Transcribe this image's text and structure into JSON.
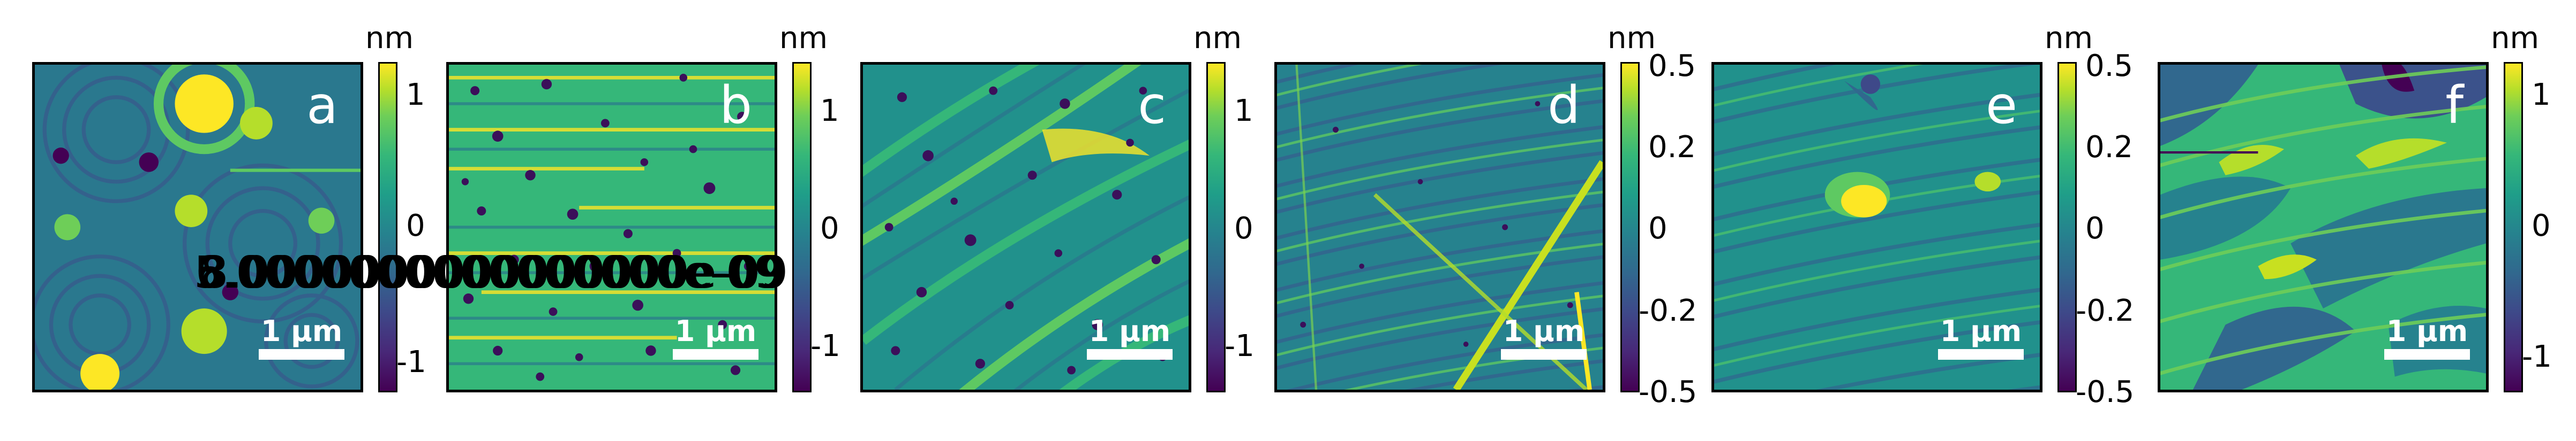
{
  "figure": {
    "panels": [
      {
        "id": "a",
        "label": "a",
        "scalebar": "1 μm",
        "unit": "nm",
        "ticks": [
          "1",
          "0",
          "-1"
        ],
        "texture": "rings"
      },
      {
        "id": "b",
        "label": "b",
        "scalebar": "1 μm",
        "unit": "nm",
        "ticks": [
          "1",
          "0",
          "-1"
        ],
        "texture": "pits"
      },
      {
        "id": "c",
        "label": "c",
        "scalebar": "1 μm",
        "unit": "nm",
        "ticks": [
          "1",
          "0",
          "-1"
        ],
        "texture": "steps"
      },
      {
        "id": "d",
        "label": "d",
        "scalebar": "1 μm",
        "unit": "nm",
        "ticks": [
          "0.5",
          "0.2",
          "0",
          "-0.2",
          "-0.5"
        ],
        "texture": "terraces"
      },
      {
        "id": "e",
        "label": "e",
        "scalebar": "1 μm",
        "unit": "nm",
        "ticks": [
          "0.5",
          "0.2",
          "0",
          "-0.2",
          "-0.5"
        ],
        "texture": "terraces-blob"
      },
      {
        "id": "f",
        "label": "f",
        "scalebar": "1 μm",
        "unit": "nm",
        "ticks": [
          "1",
          "0",
          "-1"
        ],
        "texture": "islands"
      }
    ],
    "overlapping_text": [
      "5.0000000000000000e-09",
      "3.0000000000000000e-09",
      "8.0000000000000000e-09",
      "6.0000000000000000e-09"
    ]
  },
  "colors": {
    "viridis_dark": "#440154",
    "viridis_mid": "#21918c",
    "viridis_green": "#5ec962",
    "viridis_yellow": "#fde725",
    "pit": "#3b0f5a"
  }
}
